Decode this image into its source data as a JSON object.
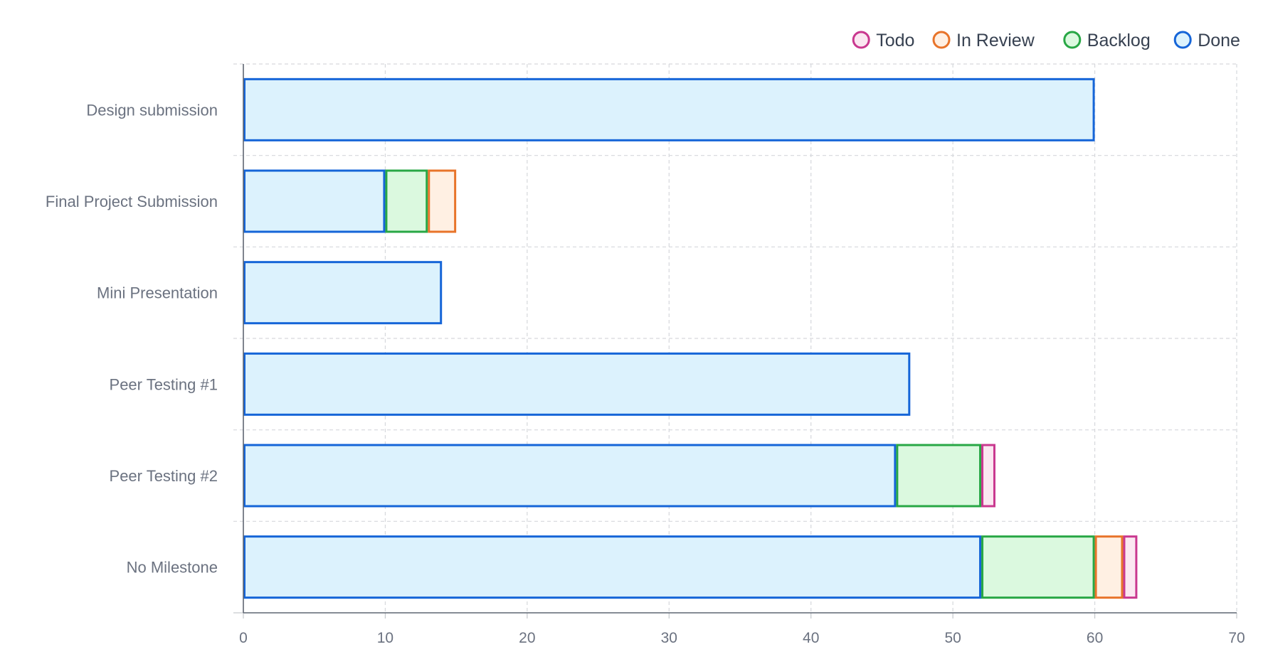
{
  "chart_data": {
    "type": "bar",
    "orientation": "horizontal",
    "stacked": true,
    "categories": [
      "Design submission",
      "Final Project Submission",
      "Mini Presentation",
      "Peer Testing #1",
      "Peer Testing #2",
      "No Milestone"
    ],
    "series": [
      {
        "name": "Done",
        "values": [
          60,
          10,
          14,
          47,
          46,
          52
        ],
        "border": "#1565d8",
        "fill": "#dcf2fd"
      },
      {
        "name": "Backlog",
        "values": [
          0,
          3,
          0,
          0,
          6,
          8
        ],
        "border": "#28a745",
        "fill": "#dbf9df"
      },
      {
        "name": "In Review",
        "values": [
          0,
          2,
          0,
          0,
          0,
          2
        ],
        "border": "#e8742a",
        "fill": "#fff0e3"
      },
      {
        "name": "Todo",
        "values": [
          0,
          0,
          0,
          0,
          1,
          1
        ],
        "border": "#c9388f",
        "fill": "#fbe7f1"
      }
    ],
    "legend": {
      "position": "top-right",
      "order": [
        "Todo",
        "In Review",
        "Backlog",
        "Done"
      ]
    },
    "xlim": [
      0,
      70
    ],
    "xticks": [
      0,
      10,
      20,
      30,
      40,
      50,
      60,
      70
    ],
    "title": "",
    "xlabel": "",
    "ylabel": "",
    "grid": true
  }
}
